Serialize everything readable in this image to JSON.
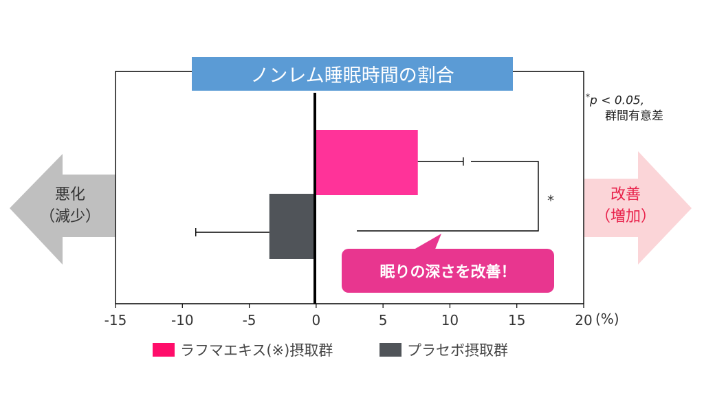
{
  "title": "ノンレム睡眠時間の割合",
  "left_arrow": {
    "line1": "悪化",
    "line2": "（減少）",
    "color": "#bfbfbf",
    "text_color": "#333333"
  },
  "right_arrow": {
    "line1": "改善",
    "line2": "（増加）",
    "color": "#fbd5d8",
    "text_color": "#e8204a"
  },
  "significance": {
    "marker": "*",
    "note_line1": "p < 0.05,",
    "note_line2": "群間有意差"
  },
  "callout": {
    "text": "眠りの深さを改善！",
    "color": "#e8368f"
  },
  "legend": [
    {
      "label": "ラフマエキス(※)摂取群",
      "color": "#ff0d6a"
    },
    {
      "label": "プラセボ摂取群",
      "color": "#505459"
    }
  ],
  "chart_data": {
    "type": "bar",
    "orientation": "horizontal",
    "title": "ノンレム睡眠時間の割合",
    "xlabel": "(%)",
    "xlim": [
      -15,
      20
    ],
    "xticks": [
      -15,
      -10,
      -5,
      0,
      5,
      10,
      15,
      20
    ],
    "series": [
      {
        "name": "ラフマエキス(※)摂取群",
        "value": 7.6,
        "error": 3.4,
        "color": "#ff3399"
      },
      {
        "name": "プラセボ摂取群",
        "value": -3.5,
        "error": 5.5,
        "color": "#505459"
      }
    ],
    "grid": false
  }
}
